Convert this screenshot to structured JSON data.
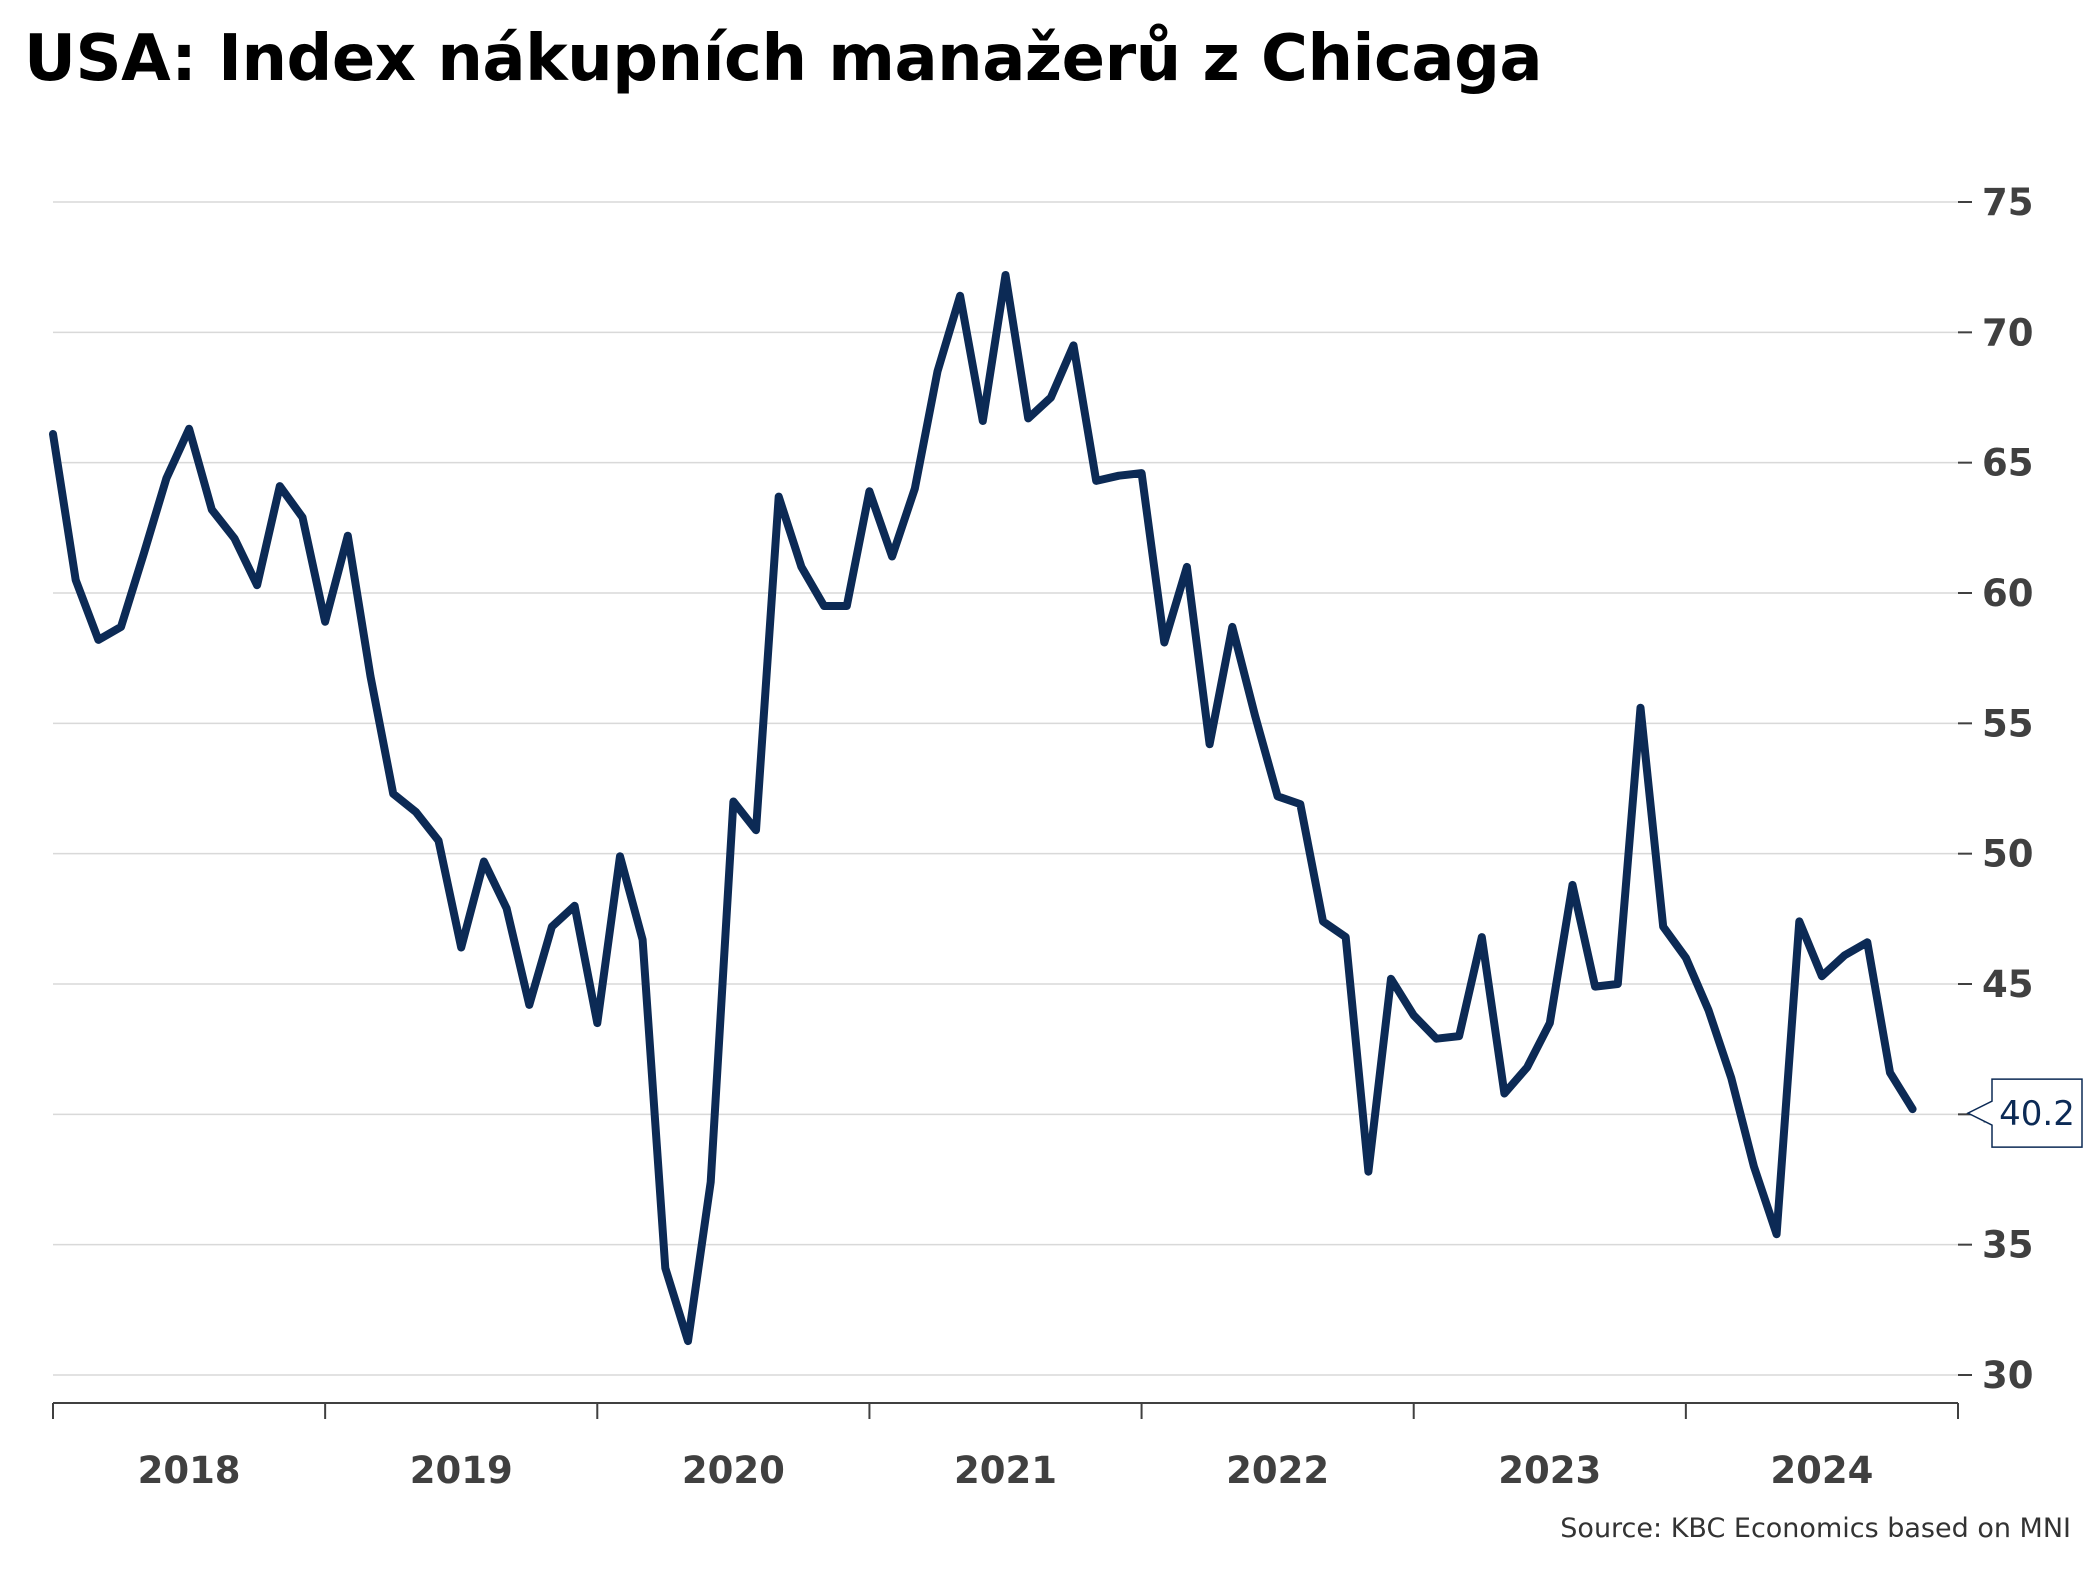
{
  "chart_data": {
    "type": "line",
    "title": "USA: Index nákupních manažerů z Chicaga",
    "source": "Source: KBC Economics based on MNI",
    "ylim": [
      30,
      75
    ],
    "yticks": [
      30,
      35,
      40,
      45,
      50,
      55,
      60,
      65,
      70,
      75
    ],
    "x_start": "2018-01",
    "x_end": "2025-01",
    "x_first_point": "2018-01",
    "xtick_labels": [
      "2018",
      "2019",
      "2020",
      "2021",
      "2022",
      "2023",
      "2024"
    ],
    "grid": true,
    "last_value_label": "40.2",
    "colors": {
      "line": "#0c2a55",
      "grid": "#d9d9d9",
      "axis": "#404040"
    },
    "series": [
      {
        "values": [
          66.1,
          60.5,
          58.2,
          58.7,
          61.5,
          64.4,
          66.3,
          63.2,
          62.1,
          60.3,
          64.1,
          62.9,
          58.9,
          62.2,
          56.8,
          52.3,
          51.6,
          50.5,
          46.4,
          49.7,
          47.9,
          44.2,
          47.2,
          48.0,
          43.5,
          49.9,
          46.7,
          34.1,
          31.3,
          37.4,
          52.0,
          50.9,
          63.7,
          61.0,
          59.5,
          59.5,
          63.9,
          61.4,
          64.0,
          68.5,
          71.4,
          66.6,
          72.2,
          66.7,
          67.5,
          69.5,
          64.3,
          64.5,
          64.6,
          58.1,
          61.0,
          54.2,
          58.7,
          55.3,
          52.2,
          51.9,
          47.4,
          46.8,
          37.8,
          45.2,
          43.8,
          42.9,
          43.0,
          46.8,
          40.8,
          41.8,
          43.5,
          48.8,
          44.9,
          45.0,
          55.6,
          47.2,
          46.0,
          44.0,
          41.4,
          38.0,
          35.4,
          47.4,
          45.3,
          46.1,
          46.6,
          41.6,
          40.2
        ]
      }
    ]
  }
}
